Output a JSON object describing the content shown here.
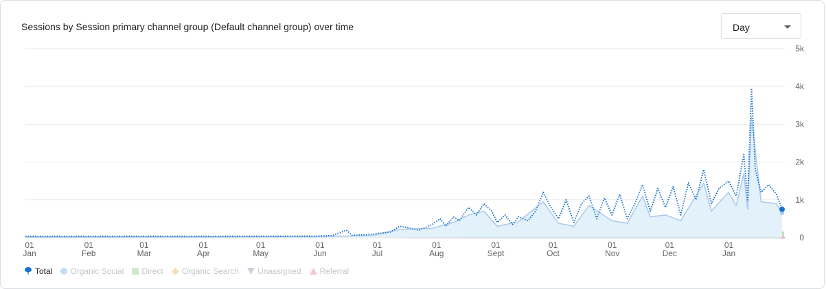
{
  "card": {
    "title": "Sessions by Session primary channel group (Default channel group) over time",
    "granularity": {
      "selected": "Day"
    }
  },
  "chart_data": {
    "type": "line",
    "x_range": [
      "2024-01-01",
      "2025-01-31"
    ],
    "x_ticks": [
      {
        "day": "01",
        "month": "Jan",
        "date": "2024-01-01"
      },
      {
        "day": "01",
        "month": "Feb",
        "date": "2024-02-01"
      },
      {
        "day": "01",
        "month": "Mar",
        "date": "2024-03-01"
      },
      {
        "day": "01",
        "month": "Apr",
        "date": "2024-04-01"
      },
      {
        "day": "01",
        "month": "May",
        "date": "2024-05-01"
      },
      {
        "day": "01",
        "month": "Jun",
        "date": "2024-06-01"
      },
      {
        "day": "01",
        "month": "Jul",
        "date": "2024-07-01"
      },
      {
        "day": "01",
        "month": "Aug",
        "date": "2024-08-01"
      },
      {
        "day": "01",
        "month": "Sept",
        "date": "2024-09-01"
      },
      {
        "day": "01",
        "month": "Oct",
        "date": "2024-10-01"
      },
      {
        "day": "01",
        "month": "Nov",
        "date": "2024-11-01"
      },
      {
        "day": "01",
        "month": "Dec",
        "date": "2024-12-01"
      },
      {
        "day": "01",
        "month": "Jan",
        "date": "2025-01-01"
      }
    ],
    "ylim": [
      0,
      5000
    ],
    "y_ticks": [
      {
        "value": 0,
        "label": "0"
      },
      {
        "value": 1000,
        "label": "1k"
      },
      {
        "value": 2000,
        "label": "2k"
      },
      {
        "value": 3000,
        "label": "3k"
      },
      {
        "value": 4000,
        "label": "4k"
      },
      {
        "value": 5000,
        "label": "5k"
      }
    ],
    "grid": true,
    "legend_position": "bottom-left",
    "series": [
      {
        "name": "Total",
        "color": "#1a73c8",
        "style": "dotted",
        "active": true,
        "points": [
          [
            "2024-01-01",
            30
          ],
          [
            "2024-02-01",
            30
          ],
          [
            "2024-03-01",
            35
          ],
          [
            "2024-04-01",
            30
          ],
          [
            "2024-05-01",
            35
          ],
          [
            "2024-06-01",
            40
          ],
          [
            "2024-06-10",
            60
          ],
          [
            "2024-06-17",
            200
          ],
          [
            "2024-06-20",
            60
          ],
          [
            "2024-07-01",
            90
          ],
          [
            "2024-07-10",
            150
          ],
          [
            "2024-07-15",
            300
          ],
          [
            "2024-07-20",
            250
          ],
          [
            "2024-07-25",
            200
          ],
          [
            "2024-08-01",
            350
          ],
          [
            "2024-08-05",
            500
          ],
          [
            "2024-08-08",
            300
          ],
          [
            "2024-08-12",
            550
          ],
          [
            "2024-08-15",
            450
          ],
          [
            "2024-08-20",
            800
          ],
          [
            "2024-08-24",
            600
          ],
          [
            "2024-08-28",
            900
          ],
          [
            "2024-09-01",
            700
          ],
          [
            "2024-09-04",
            400
          ],
          [
            "2024-09-08",
            600
          ],
          [
            "2024-09-12",
            350
          ],
          [
            "2024-09-15",
            550
          ],
          [
            "2024-09-20",
            450
          ],
          [
            "2024-09-24",
            700
          ],
          [
            "2024-09-28",
            1200
          ],
          [
            "2024-10-02",
            800
          ],
          [
            "2024-10-06",
            500
          ],
          [
            "2024-10-10",
            1000
          ],
          [
            "2024-10-14",
            400
          ],
          [
            "2024-10-18",
            900
          ],
          [
            "2024-10-22",
            1100
          ],
          [
            "2024-10-26",
            500
          ],
          [
            "2024-10-30",
            1050
          ],
          [
            "2024-11-03",
            600
          ],
          [
            "2024-11-07",
            1150
          ],
          [
            "2024-11-11",
            500
          ],
          [
            "2024-11-15",
            900
          ],
          [
            "2024-11-19",
            1400
          ],
          [
            "2024-11-23",
            700
          ],
          [
            "2024-11-27",
            1300
          ],
          [
            "2024-12-01",
            800
          ],
          [
            "2024-12-05",
            1350
          ],
          [
            "2024-12-09",
            600
          ],
          [
            "2024-12-13",
            1450
          ],
          [
            "2024-12-17",
            1000
          ],
          [
            "2024-12-21",
            1800
          ],
          [
            "2024-12-25",
            900
          ],
          [
            "2024-12-29",
            1300
          ],
          [
            "2025-01-03",
            1500
          ],
          [
            "2025-01-07",
            1100
          ],
          [
            "2025-01-11",
            2200
          ],
          [
            "2025-01-13",
            1000
          ],
          [
            "2025-01-15",
            3950
          ],
          [
            "2025-01-17",
            1800
          ],
          [
            "2025-01-20",
            1200
          ],
          [
            "2025-01-24",
            1400
          ],
          [
            "2025-01-28",
            1150
          ],
          [
            "2025-01-31",
            750
          ]
        ]
      },
      {
        "name": "Organic Social",
        "color": "#a8c8ec",
        "style": "solid-area",
        "active": false,
        "points": [
          [
            "2024-01-01",
            20
          ],
          [
            "2024-06-01",
            25
          ],
          [
            "2024-07-01",
            60
          ],
          [
            "2024-07-15",
            220
          ],
          [
            "2024-08-01",
            250
          ],
          [
            "2024-08-12",
            400
          ],
          [
            "2024-08-20",
            600
          ],
          [
            "2024-08-28",
            700
          ],
          [
            "2024-09-04",
            300
          ],
          [
            "2024-09-15",
            420
          ],
          [
            "2024-09-28",
            950
          ],
          [
            "2024-10-06",
            380
          ],
          [
            "2024-10-14",
            300
          ],
          [
            "2024-10-22",
            850
          ],
          [
            "2024-11-03",
            450
          ],
          [
            "2024-11-11",
            380
          ],
          [
            "2024-11-19",
            1100
          ],
          [
            "2024-11-23",
            550
          ],
          [
            "2024-12-01",
            600
          ],
          [
            "2024-12-09",
            450
          ],
          [
            "2024-12-21",
            1450
          ],
          [
            "2024-12-25",
            700
          ],
          [
            "2025-01-03",
            1200
          ],
          [
            "2025-01-07",
            850
          ],
          [
            "2025-01-11",
            1700
          ],
          [
            "2025-01-13",
            750
          ],
          [
            "2025-01-15",
            3200
          ],
          [
            "2025-01-20",
            950
          ],
          [
            "2025-01-28",
            900
          ],
          [
            "2025-01-31",
            650
          ]
        ]
      },
      {
        "name": "Direct",
        "color": "#b9dfb6",
        "style": "solid",
        "active": false,
        "points": [
          [
            "2024-01-01",
            5
          ],
          [
            "2024-07-01",
            10
          ],
          [
            "2024-08-01",
            60
          ],
          [
            "2024-09-01",
            80
          ],
          [
            "2024-10-01",
            90
          ],
          [
            "2024-11-01",
            100
          ],
          [
            "2024-12-01",
            120
          ],
          [
            "2025-01-01",
            140
          ],
          [
            "2025-01-31",
            120
          ]
        ]
      },
      {
        "name": "Organic Search",
        "color": "#f6d4a2",
        "style": "solid",
        "active": false,
        "points": [
          [
            "2024-01-01",
            3
          ],
          [
            "2024-07-01",
            8
          ],
          [
            "2024-08-01",
            40
          ],
          [
            "2024-09-01",
            50
          ],
          [
            "2024-10-01",
            60
          ],
          [
            "2024-11-01",
            70
          ],
          [
            "2024-12-01",
            80
          ],
          [
            "2025-01-01",
            90
          ],
          [
            "2025-01-31",
            80
          ]
        ]
      },
      {
        "name": "Unassigned",
        "color": "#c9c9d6",
        "style": "solid",
        "active": false,
        "points": [
          [
            "2024-01-01",
            2
          ],
          [
            "2024-07-01",
            5
          ],
          [
            "2024-08-01",
            25
          ],
          [
            "2024-09-01",
            30
          ],
          [
            "2024-10-01",
            35
          ],
          [
            "2024-11-01",
            40
          ],
          [
            "2024-12-01",
            45
          ],
          [
            "2025-01-01",
            50
          ],
          [
            "2025-01-31",
            45
          ]
        ]
      },
      {
        "name": "Referral",
        "color": "#f4b4c8",
        "style": "solid",
        "active": false,
        "points": [
          [
            "2024-01-01",
            1
          ],
          [
            "2024-07-01",
            3
          ],
          [
            "2024-08-01",
            10
          ],
          [
            "2024-09-01",
            12
          ],
          [
            "2024-10-01",
            14
          ],
          [
            "2024-11-01",
            16
          ],
          [
            "2024-12-01",
            18
          ],
          [
            "2025-01-01",
            20
          ],
          [
            "2025-01-31",
            18
          ]
        ]
      }
    ],
    "legend": [
      {
        "name": "Total",
        "icon": "pin-icon",
        "color": "#1a73c8",
        "active": true
      },
      {
        "name": "Organic Social",
        "icon": "circle-icon",
        "color": "#c4dbf3",
        "active": false
      },
      {
        "name": "Direct",
        "icon": "square-icon",
        "color": "#cfe8cd",
        "active": false
      },
      {
        "name": "Organic Search",
        "icon": "diamond-icon",
        "color": "#f6dfb8",
        "active": false
      },
      {
        "name": "Unassigned",
        "icon": "triangle-down-icon",
        "color": "#cfd0da",
        "active": false
      },
      {
        "name": "Referral",
        "icon": "triangle-up-icon",
        "color": "#f6c6d4",
        "active": false
      }
    ]
  }
}
